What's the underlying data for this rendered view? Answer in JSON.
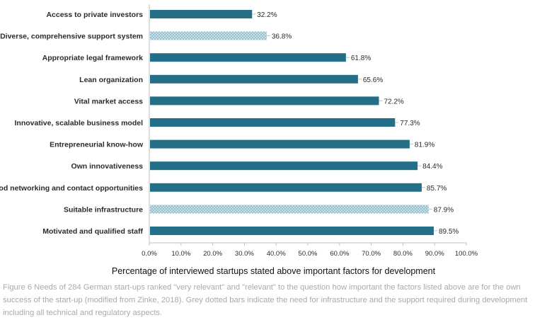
{
  "chart_data": {
    "type": "bar",
    "orientation": "horizontal",
    "categories": [
      "Access to private investors",
      "Diverse, comprehensive support system",
      "Appropriate legal framework",
      "Lean organization",
      "Vital market access",
      "Innovative, scalable business model",
      "Entrepreneurial know-how",
      "Own innovativeness",
      "Good networking and contact opportunities",
      "Suitable infrastructure",
      "Motivated and qualified staff"
    ],
    "values": [
      32.2,
      36.8,
      61.8,
      65.6,
      72.2,
      77.3,
      81.9,
      84.4,
      85.7,
      87.9,
      89.5
    ],
    "value_labels": [
      "32.2%",
      "36.8%",
      "61.8%",
      "65.6%",
      "72.2%",
      "77.3%",
      "81.9%",
      "84.4%",
      "85.7%",
      "87.9%",
      "89.5%"
    ],
    "dotted": [
      false,
      true,
      false,
      false,
      false,
      false,
      false,
      false,
      false,
      true,
      false
    ],
    "xticks": [
      "0.0%",
      "10.0%",
      "20.0%",
      "30.0%",
      "40.0%",
      "50.0%",
      "60.0%",
      "70.0%",
      "80.0%",
      "90.0%",
      "100.0%"
    ],
    "xlim": [
      0,
      100
    ],
    "xlabel": "Percentage of interviewed startups stated above important factors for development",
    "ylabel": "",
    "title": "",
    "grid": false,
    "colors": {
      "solid": "#226f87",
      "dotted_bg": "#c9dfe8",
      "dotted_fg": "#5a9ab0"
    }
  },
  "caption": "Figure 6 Needs of 284 German start-ups ranked \"very relevant\" and \"relevant\" to the question how important the factors listed above are for the own success of the start-up (modified from Zinke, 2018). Grey dotted bars indicate the need for infrastructure and the support required during development including all technical and regulatory aspects."
}
